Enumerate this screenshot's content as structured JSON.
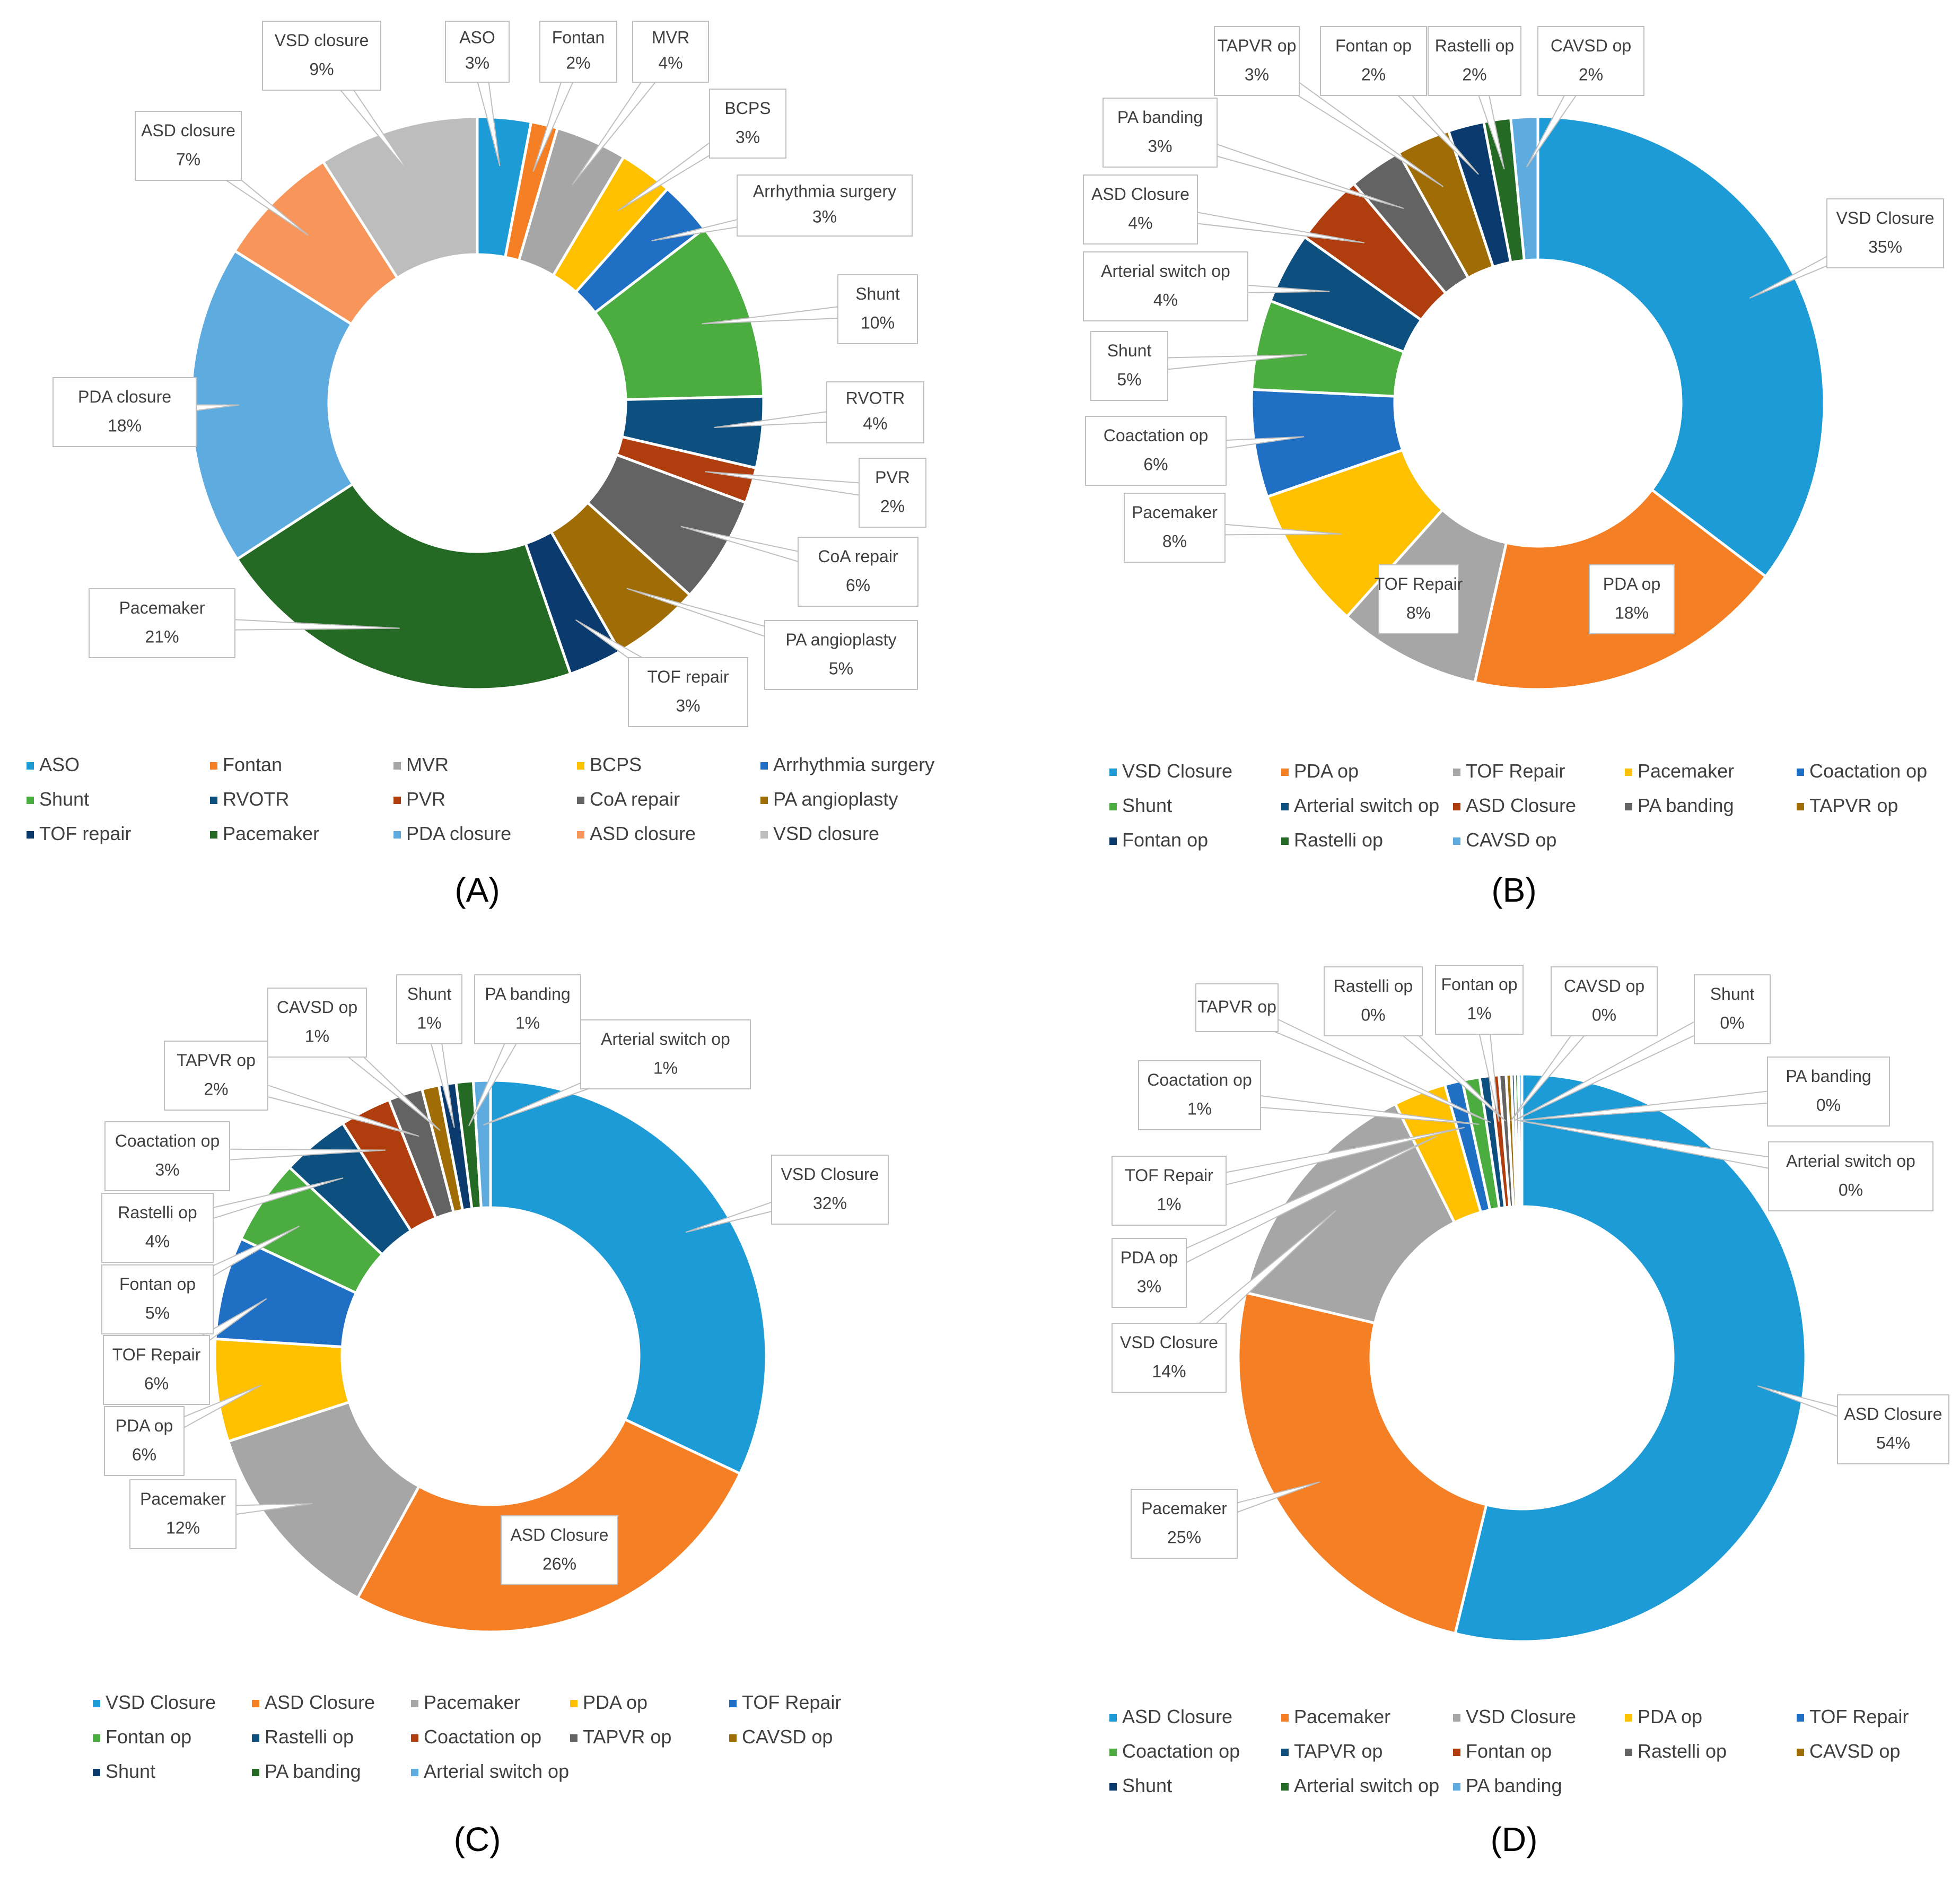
{
  "chart_data": [
    {
      "type": "pie",
      "panel_label": "(A)",
      "title": "",
      "categories": [
        "ASO",
        "Fontan",
        "MVR",
        "BCPS",
        "Arrhythmia surgery",
        "Shunt",
        "RVOTR",
        "PVR",
        "CoA repair",
        "PA angioplasty",
        "TOF repair",
        "Pacemaker",
        "PDA closure",
        "ASD closure",
        "VSD closure"
      ],
      "values": [
        3,
        1.5,
        4,
        3,
        3,
        10,
        4,
        2,
        6,
        5,
        3,
        21,
        18,
        7,
        9
      ],
      "data_labels": [
        "3%",
        "2%",
        "4%",
        "3%",
        "3%",
        "10%",
        "4%",
        "2%",
        "6%",
        "5%",
        "3%",
        "21%",
        "18%",
        "7%",
        "9%"
      ],
      "colors": [
        "#1c9bd6",
        "#f57f25",
        "#a6a6a6",
        "#ffc000",
        "#1f6fc5",
        "#4bac3f",
        "#0d5080",
        "#b03d0e",
        "#636363",
        "#a06c06",
        "#0b3a6e",
        "#256a24",
        "#5eacdf",
        "#f8955a",
        "#bdbdbd"
      ],
      "legend_position": "bottom"
    },
    {
      "type": "pie",
      "panel_label": "(B)",
      "title": "",
      "categories": [
        "VSD Closure",
        "PDA op",
        "TOF Repair",
        "Pacemaker",
        "Coactation op",
        "Shunt",
        "Arterial switch op",
        "ASD Closure",
        "PA banding",
        "TAPVR op",
        "Fontan op",
        "Rastelli op",
        "CAVSD op"
      ],
      "values": [
        35,
        18,
        8,
        8,
        6,
        5,
        4,
        4,
        3,
        3,
        2,
        1.5,
        1.5
      ],
      "data_labels": [
        "35%",
        "18%",
        "8%",
        "8%",
        "6%",
        "5%",
        "4%",
        "4%",
        "3%",
        "3%",
        "2%",
        "2%",
        "2%"
      ],
      "colors": [
        "#1c9bd6",
        "#f57f25",
        "#a6a6a6",
        "#ffc000",
        "#1f6fc5",
        "#4bac3f",
        "#0d5080",
        "#b03d0e",
        "#636363",
        "#a06c06",
        "#0b3a6e",
        "#256a24",
        "#5eacdf"
      ],
      "legend_position": "bottom"
    },
    {
      "type": "pie",
      "panel_label": "(C)",
      "title": "",
      "categories": [
        "VSD Closure",
        "ASD Closure",
        "Pacemaker",
        "PDA op",
        "TOF Repair",
        "Fontan op",
        "Rastelli op",
        "Coactation op",
        "TAPVR op",
        "CAVSD op",
        "Shunt",
        "PA banding",
        "Arterial switch op"
      ],
      "values": [
        32,
        26,
        12,
        6,
        6,
        5,
        4,
        3,
        2,
        1,
        1,
        1,
        1
      ],
      "data_labels": [
        "32%",
        "26%",
        "12%",
        "6%",
        "6%",
        "5%",
        "4%",
        "3%",
        "2%",
        "1%",
        "1%",
        "1%",
        "1%"
      ],
      "colors": [
        "#1c9bd6",
        "#f57f25",
        "#a6a6a6",
        "#ffc000",
        "#1f6fc5",
        "#4bac3f",
        "#0d5080",
        "#b03d0e",
        "#636363",
        "#a06c06",
        "#0b3a6e",
        "#256a24",
        "#5eacdf"
      ],
      "legend_position": "bottom"
    },
    {
      "type": "pie",
      "panel_label": "(D)",
      "title": "",
      "categories": [
        "ASD Closure",
        "Pacemaker",
        "VSD Closure",
        "PDA op",
        "TOF Repair",
        "Coactation op",
        "TAPVR op",
        "Fontan op",
        "Rastelli op",
        "CAVSD op",
        "Shunt",
        "Arterial switch op",
        "PA banding"
      ],
      "values": [
        54,
        25,
        14,
        3,
        1,
        1,
        0.6,
        0.5,
        0.4,
        0.3,
        0.2,
        0.2,
        0.2
      ],
      "data_labels": [
        "54%",
        "25%",
        "14%",
        "3%",
        "1%",
        "1%",
        "",
        "1%",
        "0%",
        "0%",
        "0%",
        "0%",
        "0%"
      ],
      "colors": [
        "#1c9bd6",
        "#f57f25",
        "#a6a6a6",
        "#ffc000",
        "#1f6fc5",
        "#4bac3f",
        "#0d5080",
        "#b03d0e",
        "#636363",
        "#a06c06",
        "#0b3a6e",
        "#256a24",
        "#5eacdf"
      ],
      "legend_position": "bottom"
    }
  ]
}
